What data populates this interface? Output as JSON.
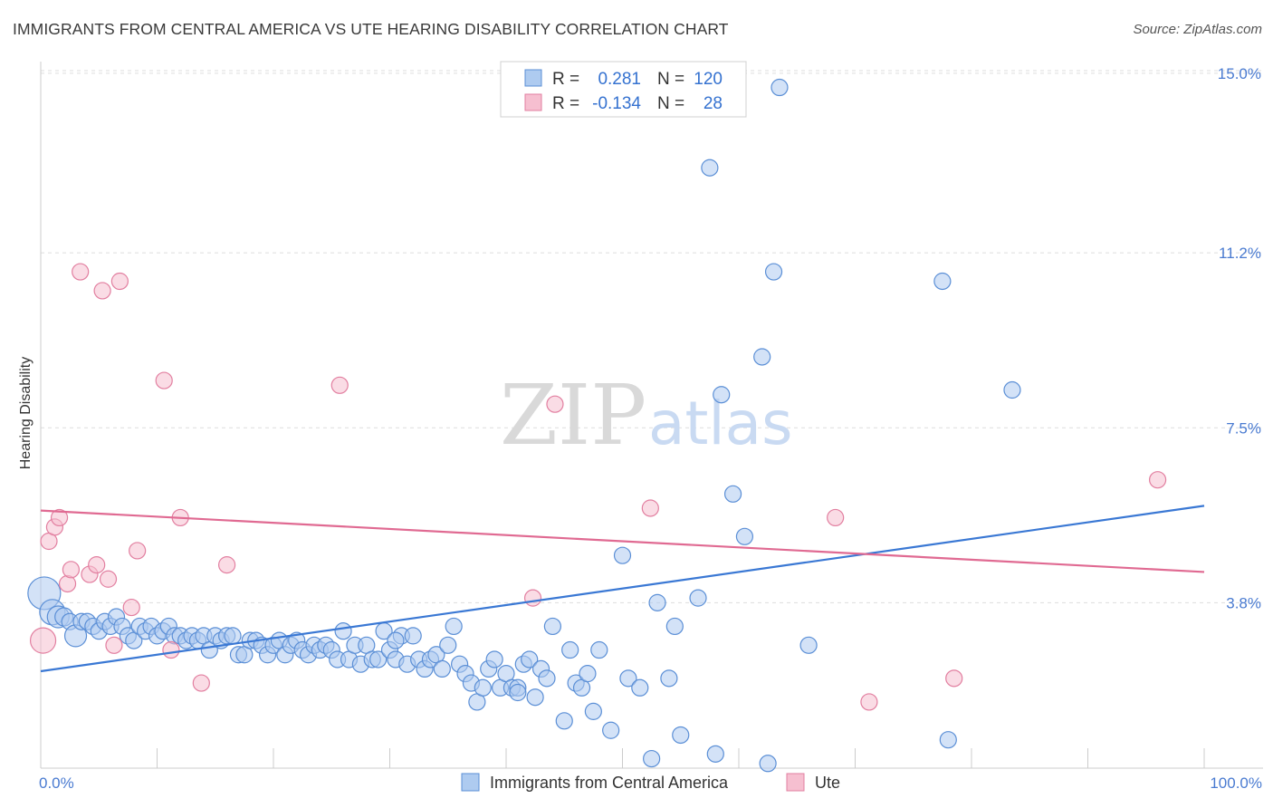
{
  "title": "IMMIGRANTS FROM CENTRAL AMERICA VS UTE HEARING DISABILITY CORRELATION CHART",
  "source": "Source: ZipAtlas.com",
  "watermark": {
    "part1": "ZIP",
    "part2": "atlas"
  },
  "legend": {
    "rows": [
      {
        "r_label": "R =",
        "r_value": "0.281",
        "n_label": "N =",
        "n_value": "120",
        "color": "#aecbf0",
        "stroke": "#5b8fd6"
      },
      {
        "r_label": "R =",
        "r_value": "-0.134",
        "n_label": "N =",
        "n_value": "28",
        "color": "#f6bfd0",
        "stroke": "#e27fa0"
      }
    ]
  },
  "bottom_legend": [
    {
      "label": "Immigrants from Central America",
      "color": "#aecbf0",
      "stroke": "#5b8fd6"
    },
    {
      "label": "Ute",
      "color": "#f6bfd0",
      "stroke": "#e27fa0"
    }
  ],
  "chart_data": {
    "type": "scatter",
    "xlabel": "",
    "ylabel": "Hearing Disability",
    "xlim": [
      0,
      100
    ],
    "ylim": [
      0.3,
      15.4
    ],
    "x_tick_labels": [
      "0.0%",
      "100.0%"
    ],
    "y_ticks": [
      {
        "value": 3.8,
        "label": "3.8%"
      },
      {
        "value": 7.5,
        "label": "7.5%"
      },
      {
        "value": 11.2,
        "label": "11.2%"
      },
      {
        "value": 15.0,
        "label": "15.0%"
      }
    ],
    "grid": true,
    "series": [
      {
        "name": "Immigrants from Central America",
        "color": "#aecbf0",
        "stroke": "#5b8fd6",
        "trend": {
          "x": [
            0,
            100
          ],
          "y": [
            2.35,
            5.85
          ]
        },
        "points": [
          [
            0.3,
            4.0,
            18
          ],
          [
            1.0,
            3.6,
            14
          ],
          [
            1.5,
            3.5,
            12
          ],
          [
            2.0,
            3.5,
            10
          ],
          [
            2.5,
            3.4,
            9
          ],
          [
            3.0,
            3.1,
            12
          ],
          [
            3.5,
            3.4,
            9
          ],
          [
            4.0,
            3.4,
            9
          ],
          [
            4.5,
            3.3,
            9
          ],
          [
            5.0,
            3.2,
            9
          ],
          [
            5.5,
            3.4,
            9
          ],
          [
            6.0,
            3.3,
            9
          ],
          [
            6.5,
            3.5,
            9
          ],
          [
            7.0,
            3.3,
            9
          ],
          [
            7.5,
            3.1,
            9
          ],
          [
            8.0,
            3.0,
            9
          ],
          [
            8.5,
            3.3,
            9
          ],
          [
            9.0,
            3.2,
            9
          ],
          [
            9.5,
            3.3,
            9
          ],
          [
            10.0,
            3.1,
            9
          ],
          [
            10.5,
            3.2,
            9
          ],
          [
            11.0,
            3.3,
            9
          ],
          [
            11.5,
            3.1,
            9
          ],
          [
            12.0,
            3.1,
            9
          ],
          [
            12.5,
            3.0,
            9
          ],
          [
            13.0,
            3.1,
            9
          ],
          [
            13.5,
            3.0,
            9
          ],
          [
            14.0,
            3.1,
            9
          ],
          [
            14.5,
            2.8,
            9
          ],
          [
            15.0,
            3.1,
            9
          ],
          [
            15.5,
            3.0,
            9
          ],
          [
            16.0,
            3.1,
            9
          ],
          [
            16.5,
            3.1,
            9
          ],
          [
            17.0,
            2.7,
            9
          ],
          [
            17.5,
            2.7,
            9
          ],
          [
            18.0,
            3.0,
            9
          ],
          [
            18.5,
            3.0,
            9
          ],
          [
            19.0,
            2.9,
            9
          ],
          [
            19.5,
            2.7,
            9
          ],
          [
            20.0,
            2.9,
            9
          ],
          [
            20.5,
            3.0,
            9
          ],
          [
            21.0,
            2.7,
            9
          ],
          [
            21.5,
            2.9,
            9
          ],
          [
            22.0,
            3.0,
            9
          ],
          [
            22.5,
            2.8,
            9
          ],
          [
            23.0,
            2.7,
            9
          ],
          [
            23.5,
            2.9,
            9
          ],
          [
            24.0,
            2.8,
            9
          ],
          [
            24.5,
            2.9,
            9
          ],
          [
            25.0,
            2.8,
            9
          ],
          [
            25.5,
            2.6,
            9
          ],
          [
            26.0,
            3.2,
            9
          ],
          [
            26.5,
            2.6,
            9
          ],
          [
            27.0,
            2.9,
            9
          ],
          [
            27.5,
            2.5,
            9
          ],
          [
            28.0,
            2.9,
            9
          ],
          [
            28.5,
            2.6,
            9
          ],
          [
            29.0,
            2.6,
            9
          ],
          [
            29.5,
            3.2,
            9
          ],
          [
            30.0,
            2.8,
            9
          ],
          [
            30.5,
            2.6,
            9
          ],
          [
            31.0,
            3.1,
            9
          ],
          [
            31.5,
            2.5,
            9
          ],
          [
            32.0,
            3.1,
            9
          ],
          [
            32.5,
            2.6,
            9
          ],
          [
            33.0,
            2.4,
            9
          ],
          [
            33.5,
            2.6,
            9
          ],
          [
            34.0,
            2.7,
            9
          ],
          [
            34.5,
            2.4,
            9
          ],
          [
            35.0,
            2.9,
            9
          ],
          [
            35.5,
            3.3,
            9
          ],
          [
            36.0,
            2.5,
            9
          ],
          [
            36.5,
            2.3,
            9
          ],
          [
            37.0,
            2.1,
            9
          ],
          [
            37.5,
            1.7,
            9
          ],
          [
            38.0,
            2.0,
            9
          ],
          [
            38.5,
            2.4,
            9
          ],
          [
            39.0,
            2.6,
            9
          ],
          [
            39.5,
            2.0,
            9
          ],
          [
            40.0,
            2.3,
            9
          ],
          [
            40.5,
            2.0,
            9
          ],
          [
            41.0,
            2.0,
            9
          ],
          [
            41.5,
            2.5,
            9
          ],
          [
            42.0,
            2.6,
            9
          ],
          [
            42.5,
            1.8,
            9
          ],
          [
            43.0,
            2.4,
            9
          ],
          [
            43.5,
            2.2,
            9
          ],
          [
            44.0,
            3.3,
            9
          ],
          [
            45.0,
            1.3,
            9
          ],
          [
            45.5,
            2.8,
            9
          ],
          [
            46.0,
            2.1,
            9
          ],
          [
            46.5,
            2.0,
            9
          ],
          [
            47.0,
            2.3,
            9
          ],
          [
            47.5,
            1.5,
            9
          ],
          [
            48.0,
            2.8,
            9
          ],
          [
            49.0,
            1.1,
            9
          ],
          [
            50.0,
            4.8,
            9
          ],
          [
            50.5,
            2.2,
            9
          ],
          [
            51.5,
            2.0,
            9
          ],
          [
            52.5,
            0.5,
            9
          ],
          [
            53.0,
            3.8,
            9
          ],
          [
            54.0,
            2.2,
            9
          ],
          [
            54.5,
            3.3,
            9
          ],
          [
            55.0,
            1.0,
            9
          ],
          [
            56.5,
            3.9,
            9
          ],
          [
            57.5,
            13.0,
            9
          ],
          [
            58.0,
            0.6,
            9
          ],
          [
            58.5,
            8.2,
            9
          ],
          [
            59.5,
            6.1,
            9
          ],
          [
            60.5,
            5.2,
            9
          ],
          [
            62.0,
            9.0,
            9
          ],
          [
            62.5,
            0.4,
            9
          ],
          [
            63.0,
            10.8,
            9
          ],
          [
            63.5,
            14.7,
            9
          ],
          [
            66.0,
            2.9,
            9
          ],
          [
            77.5,
            10.6,
            9
          ],
          [
            78.0,
            0.9,
            9
          ],
          [
            83.5,
            8.3,
            9
          ],
          [
            30.5,
            3.0,
            9
          ],
          [
            41.0,
            1.9,
            9
          ]
        ]
      },
      {
        "name": "Ute",
        "color": "#f6bfd0",
        "stroke": "#e27fa0",
        "trend": {
          "x": [
            0,
            100
          ],
          "y": [
            5.75,
            4.45
          ]
        },
        "points": [
          [
            0.2,
            3.0,
            14
          ],
          [
            0.7,
            5.1,
            9
          ],
          [
            1.2,
            5.4,
            9
          ],
          [
            1.6,
            5.6,
            9
          ],
          [
            2.3,
            4.2,
            9
          ],
          [
            2.6,
            4.5,
            9
          ],
          [
            3.4,
            10.8,
            9
          ],
          [
            4.2,
            4.4,
            9
          ],
          [
            4.8,
            4.6,
            9
          ],
          [
            5.3,
            10.4,
            9
          ],
          [
            5.8,
            4.3,
            9
          ],
          [
            6.3,
            2.9,
            9
          ],
          [
            6.8,
            10.6,
            9
          ],
          [
            7.8,
            3.7,
            9
          ],
          [
            8.3,
            4.9,
            9
          ],
          [
            10.6,
            8.5,
            9
          ],
          [
            11.2,
            2.8,
            9
          ],
          [
            12.0,
            5.6,
            9
          ],
          [
            13.8,
            2.1,
            9
          ],
          [
            16.0,
            4.6,
            9
          ],
          [
            25.7,
            8.4,
            9
          ],
          [
            42.3,
            3.9,
            9
          ],
          [
            44.2,
            8.0,
            9
          ],
          [
            52.4,
            5.8,
            9
          ],
          [
            68.3,
            5.6,
            9
          ],
          [
            71.2,
            1.7,
            9
          ],
          [
            78.5,
            2.2,
            9
          ],
          [
            96.0,
            6.4,
            9
          ]
        ]
      }
    ]
  }
}
